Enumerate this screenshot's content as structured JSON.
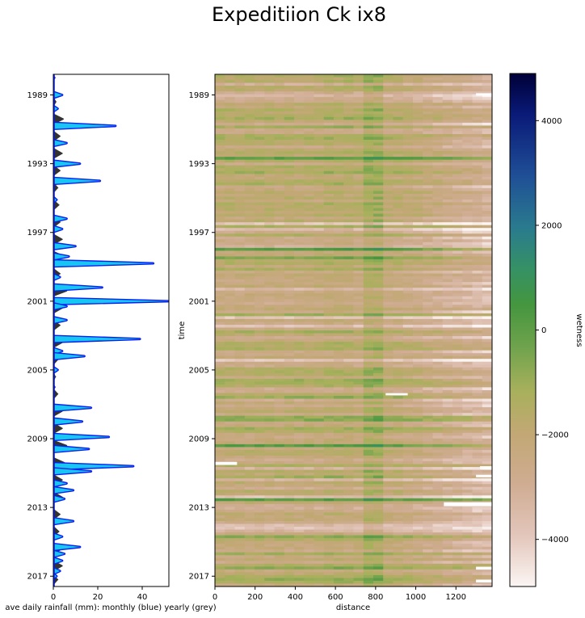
{
  "chart_data": [
    {
      "type": "area",
      "title": "",
      "xlabel": "ave daily rainfall (mm): monthly (blue) yearly (grey)",
      "ylabel": "",
      "xlim": [
        0,
        52
      ],
      "ylim": [
        1987.8,
        2017.6
      ],
      "y_inverted": true,
      "x_ticks": [
        "0",
        "20",
        "40"
      ],
      "y_ticks": [
        "1989",
        "1993",
        "1997",
        "2001",
        "2005",
        "2009",
        "2013",
        "2017"
      ],
      "colors": {
        "monthly_fill": "#17c6f2",
        "monthly_line": "#0a1ff0",
        "yearly_fill": "#333333"
      },
      "series": [
        {
          "name": "monthly",
          "points": [
            [
              1988.0,
              0.5
            ],
            [
              1989.0,
              4
            ],
            [
              1989.8,
              2
            ],
            [
              1990.8,
              28
            ],
            [
              1991.8,
              6
            ],
            [
              1993.0,
              12
            ],
            [
              1994.0,
              21
            ],
            [
              1995.1,
              1.5
            ],
            [
              1996.2,
              6
            ],
            [
              1996.8,
              4
            ],
            [
              1997.8,
              10
            ],
            [
              1998.4,
              7
            ],
            [
              1998.8,
              45
            ],
            [
              1999.6,
              3
            ],
            [
              2000.2,
              22
            ],
            [
              2001.0,
              52
            ],
            [
              2001.3,
              6
            ],
            [
              2002.1,
              6
            ],
            [
              2003.2,
              39
            ],
            [
              2003.9,
              4
            ],
            [
              2004.2,
              14
            ],
            [
              2005.0,
              2
            ],
            [
              2006.0,
              0.5
            ],
            [
              2007.2,
              17
            ],
            [
              2008.0,
              13
            ],
            [
              2008.9,
              25
            ],
            [
              2009.6,
              16
            ],
            [
              2010.6,
              36
            ],
            [
              2010.9,
              17
            ],
            [
              2011.6,
              6
            ],
            [
              2012.0,
              9
            ],
            [
              2012.5,
              5
            ],
            [
              2013.8,
              9
            ],
            [
              2014.7,
              4
            ],
            [
              2015.3,
              12
            ],
            [
              2015.7,
              5
            ],
            [
              2016.1,
              4
            ],
            [
              2016.7,
              3
            ],
            [
              2017.0,
              1.5
            ]
          ]
        },
        {
          "name": "yearly",
          "points": [
            [
              1989.4,
              1.2
            ],
            [
              1990.4,
              4.5
            ],
            [
              1991.4,
              3
            ],
            [
              1992.4,
              4
            ],
            [
              1993.4,
              3
            ],
            [
              1994.4,
              2
            ],
            [
              1995.4,
              2.5
            ],
            [
              1996.4,
              3
            ],
            [
              1997.4,
              4
            ],
            [
              1998.4,
              5
            ],
            [
              1999.4,
              3
            ],
            [
              2000.4,
              6
            ],
            [
              2001.4,
              4
            ],
            [
              2002.4,
              3
            ],
            [
              2003.4,
              4
            ],
            [
              2004.4,
              2
            ],
            [
              2005.4,
              1
            ],
            [
              2006.4,
              2
            ],
            [
              2007.4,
              4
            ],
            [
              2008.4,
              4
            ],
            [
              2009.4,
              6
            ],
            [
              2010.4,
              5
            ],
            [
              2011.4,
              4
            ],
            [
              2012.4,
              4
            ],
            [
              2013.4,
              3
            ],
            [
              2014.4,
              2.5
            ],
            [
              2015.4,
              4
            ],
            [
              2016.4,
              4
            ],
            [
              2017.2,
              2
            ]
          ]
        }
      ]
    },
    {
      "type": "heatmap",
      "title": "Expeditiion Ck ix8",
      "xlabel": "distance",
      "ylabel": "time",
      "xlim": [
        0,
        1380
      ],
      "ylim": [
        1987.8,
        2017.6
      ],
      "y_inverted": true,
      "x_ticks": [
        "0",
        "200",
        "400",
        "600",
        "800",
        "1000",
        "1200"
      ],
      "y_ticks": [
        "1989",
        "1993",
        "1997",
        "2001",
        "2005",
        "2009",
        "2013",
        "2017"
      ],
      "colorbar": {
        "label": "wetness",
        "range": [
          -4900,
          4900
        ],
        "ticks": [
          "4000",
          "2000",
          "0",
          "−2000",
          "−4000"
        ],
        "colormap": "gist_earth_r"
      }
    }
  ]
}
